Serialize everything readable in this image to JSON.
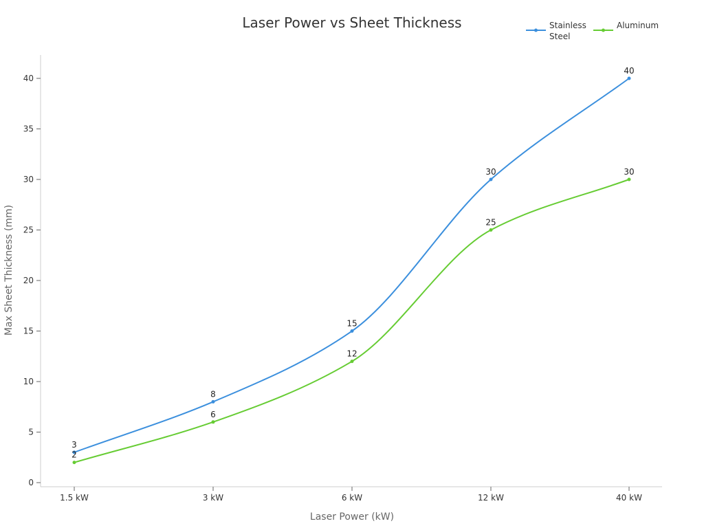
{
  "chart_data": {
    "type": "line",
    "title": "Laser Power vs Sheet Thickness",
    "xlabel": "Laser Power (kW)",
    "ylabel": "Max Sheet Thickness (mm)",
    "categories": [
      "1.5 kW",
      "3 kW",
      "6 kW",
      "12 kW",
      "40 kW"
    ],
    "series": [
      {
        "name": "Stainless Steel",
        "legend_lines": [
          "Stainless",
          "Steel"
        ],
        "color": "#3b8fdd",
        "values": [
          3,
          8,
          15,
          30,
          40
        ]
      },
      {
        "name": "Aluminum",
        "legend_lines": [
          "Aluminum"
        ],
        "color": "#66cc33",
        "values": [
          2,
          6,
          12,
          25,
          30
        ]
      }
    ],
    "ylim": [
      0,
      40
    ],
    "yticks": [
      0,
      5,
      10,
      15,
      20,
      25,
      30,
      35,
      40
    ],
    "grid": false,
    "legend_position": "top-right",
    "curve": "smooth-monotone",
    "data_labels": true
  }
}
